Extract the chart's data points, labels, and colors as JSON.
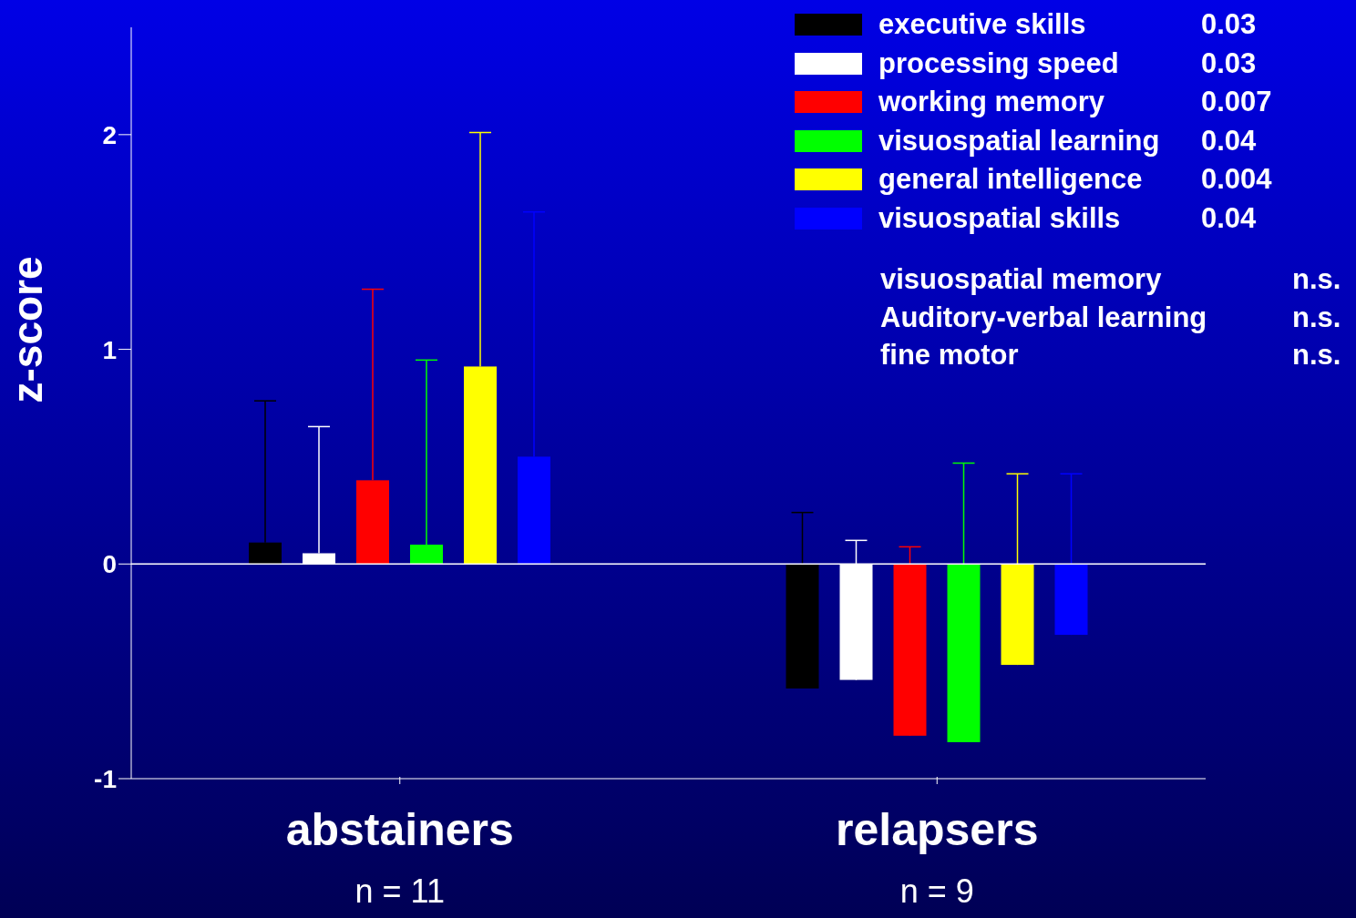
{
  "chart_data": {
    "type": "bar",
    "ylabel": "z-score",
    "categories": [
      "abstainers",
      "relapsers"
    ],
    "series": [
      {
        "name": "executive skills",
        "color": "#000000",
        "values": [
          0.1,
          -0.58
        ],
        "errors": [
          [
            0.1,
            0.76
          ],
          [
            -0.58,
            0.24
          ]
        ]
      },
      {
        "name": "processing speed",
        "color": "#ffffff",
        "values": [
          0.05,
          -0.54
        ],
        "errors": [
          [
            0.05,
            0.64
          ],
          [
            -0.54,
            0.11
          ]
        ]
      },
      {
        "name": "working memory",
        "color": "#ff0000",
        "values": [
          0.39,
          -0.8
        ],
        "errors": [
          [
            0.39,
            1.28
          ],
          [
            -0.8,
            0.08
          ]
        ]
      },
      {
        "name": "visuospatial learning",
        "color": "#00ff00",
        "values": [
          0.09,
          -0.83
        ],
        "errors": [
          [
            0.09,
            0.95
          ],
          [
            -0.83,
            0.47
          ]
        ]
      },
      {
        "name": "general intelligence",
        "color": "#ffff00",
        "values": [
          0.92,
          -0.47
        ],
        "errors": [
          [
            0.92,
            2.01
          ],
          [
            -0.47,
            0.42
          ]
        ]
      },
      {
        "name": "visuospatial skills",
        "color": "#0000ff",
        "values": [
          0.5,
          -0.33
        ],
        "errors": [
          [
            0.5,
            1.64
          ],
          [
            -0.33,
            0.42
          ]
        ]
      }
    ],
    "annotations": [
      "0.03",
      "0.03",
      "0.007",
      "0.04",
      "0.004",
      "0.04",
      "visuospatial memory",
      "n.s.",
      "Auditory-verbal learning",
      "n.s.",
      "fine motor",
      "n.s.",
      "n = 11",
      "n = 9"
    ],
    "ylim": [
      -1,
      2.5
    ],
    "yticks": [
      -1,
      0,
      1,
      2
    ],
    "ref_lines": [
      {
        "axis": "y",
        "value": 0,
        "color": "#ffffff"
      }
    ],
    "grid": false,
    "legend": "top right"
  }
}
